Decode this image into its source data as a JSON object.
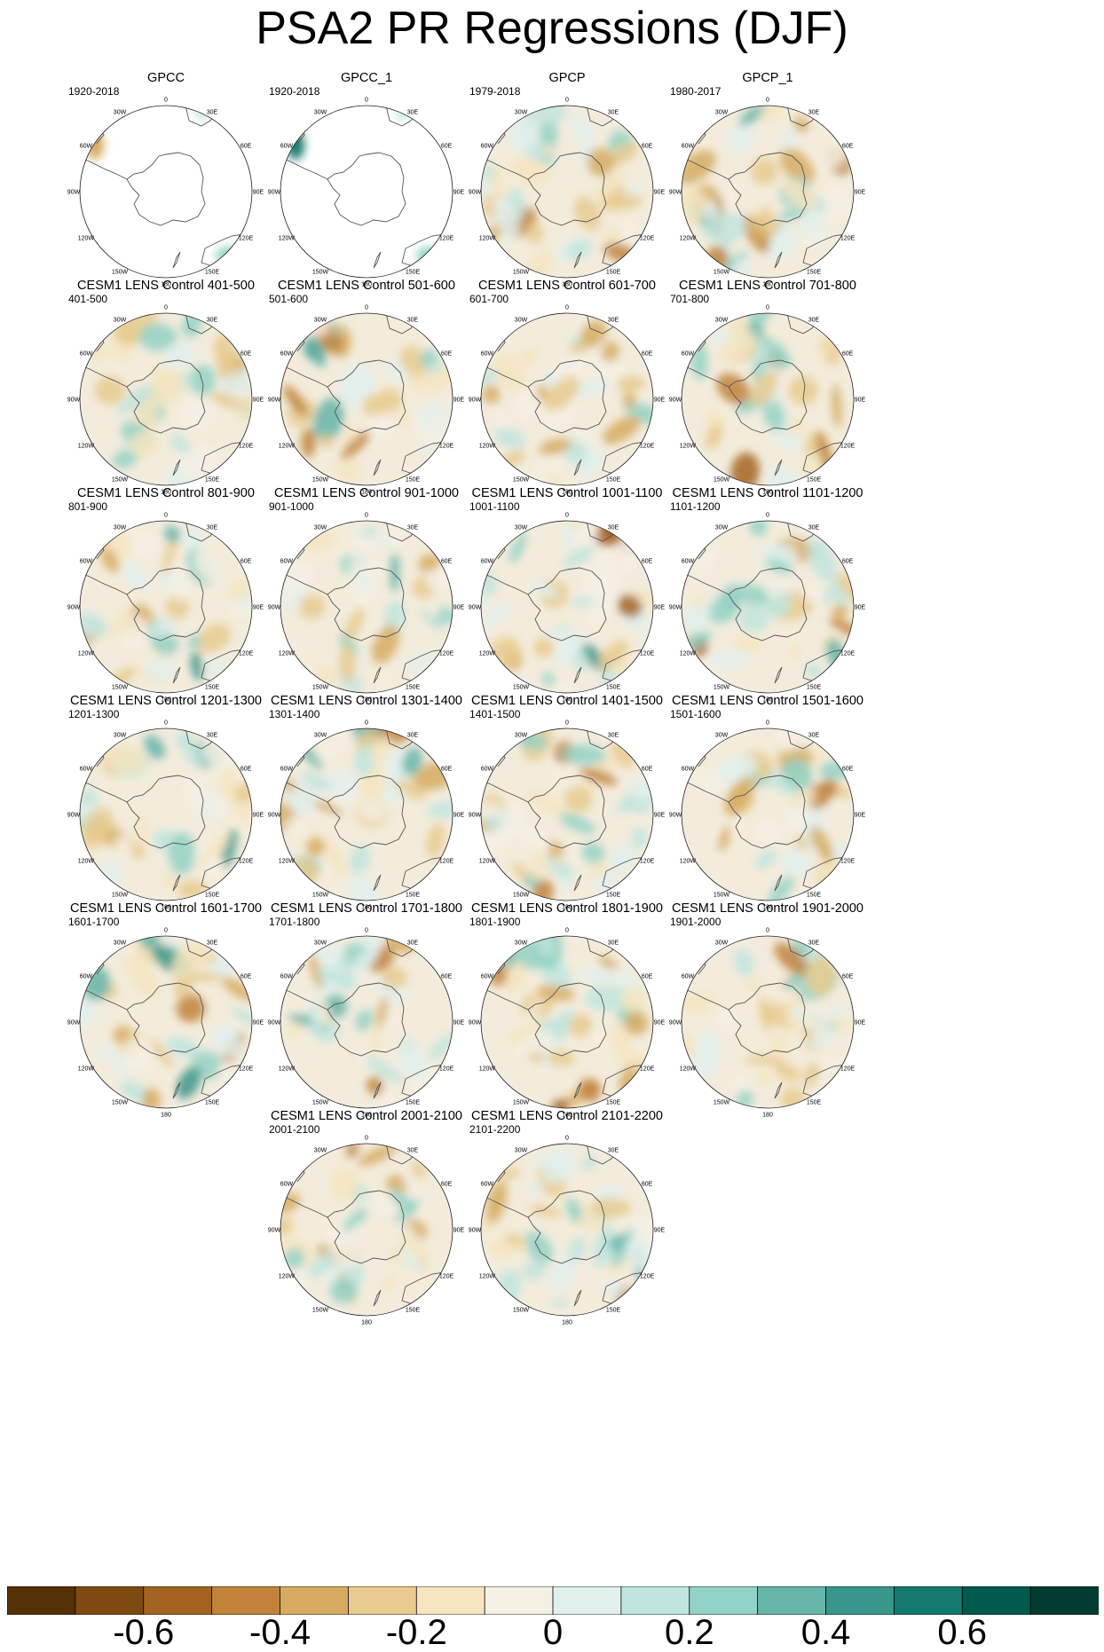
{
  "chart_data": {
    "type": "heatmap",
    "title": "PSA2 PR Regressions (DJF)",
    "projection": "south polar stereographic",
    "longitude_labels": [
      "0",
      "30E",
      "60E",
      "90E",
      "120E",
      "150E",
      "180",
      "150W",
      "120W",
      "90W",
      "60W",
      "30W"
    ],
    "panels": [
      {
        "name": "GPCC",
        "period": "1920-2018",
        "coverage": "land-only"
      },
      {
        "name": "GPCC_1",
        "period": "1920-2018",
        "coverage": "land-only"
      },
      {
        "name": "GPCP",
        "period": "1979-2018",
        "coverage": "full"
      },
      {
        "name": "GPCP_1",
        "period": "1980-2017",
        "coverage": "full"
      },
      {
        "name": "CESM1 LENS Control 401-500",
        "period": "401-500",
        "coverage": "full"
      },
      {
        "name": "CESM1 LENS Control 501-600",
        "period": "501-600",
        "coverage": "full"
      },
      {
        "name": "CESM1 LENS Control 601-700",
        "period": "601-700",
        "coverage": "full"
      },
      {
        "name": "CESM1 LENS Control 701-800",
        "period": "701-800",
        "coverage": "full"
      },
      {
        "name": "CESM1 LENS Control 801-900",
        "period": "801-900",
        "coverage": "full"
      },
      {
        "name": "CESM1 LENS Control 901-1000",
        "period": "901-1000",
        "coverage": "full"
      },
      {
        "name": "CESM1 LENS Control 1001-1100",
        "period": "1001-1100",
        "coverage": "full"
      },
      {
        "name": "CESM1 LENS Control 1101-1200",
        "period": "1101-1200",
        "coverage": "full"
      },
      {
        "name": "CESM1 LENS Control 1201-1300",
        "period": "1201-1300",
        "coverage": "full"
      },
      {
        "name": "CESM1 LENS Control 1301-1400",
        "period": "1301-1400",
        "coverage": "full"
      },
      {
        "name": "CESM1 LENS Control 1401-1500",
        "period": "1401-1500",
        "coverage": "full"
      },
      {
        "name": "CESM1 LENS Control 1501-1600",
        "period": "1501-1600",
        "coverage": "full"
      },
      {
        "name": "CESM1 LENS Control 1601-1700",
        "period": "1601-1700",
        "coverage": "full"
      },
      {
        "name": "CESM1 LENS Control 1701-1800",
        "period": "1701-1800",
        "coverage": "full"
      },
      {
        "name": "CESM1 LENS Control 1801-1900",
        "period": "1801-1900",
        "coverage": "full"
      },
      {
        "name": "CESM1 LENS Control 1901-2000",
        "period": "1901-2000",
        "coverage": "full"
      },
      {
        "name": "CESM1 LENS Control 2001-2100",
        "period": "2001-2100",
        "coverage": "full"
      },
      {
        "name": "CESM1 LENS Control 2101-2200",
        "period": "2101-2200",
        "coverage": "full"
      }
    ],
    "colorbar": {
      "colors": [
        "#543005",
        "#7f4a0f",
        "#a36320",
        "#c1833a",
        "#d6ab60",
        "#e8cb8f",
        "#f5e5c0",
        "#f5f0e4",
        "#e0f0ed",
        "#bfe5de",
        "#93d2c6",
        "#65b5a9",
        "#38968b",
        "#147a6f",
        "#005a4e",
        "#003c30"
      ],
      "tick_labels": [
        "-0.6",
        "-0.4",
        "-0.2",
        "0",
        "0.2",
        "0.4",
        "0.6"
      ],
      "tick_values": [
        -0.6,
        -0.4,
        -0.2,
        0,
        0.2,
        0.4,
        0.6
      ],
      "range": [
        -0.8,
        0.8
      ]
    }
  }
}
